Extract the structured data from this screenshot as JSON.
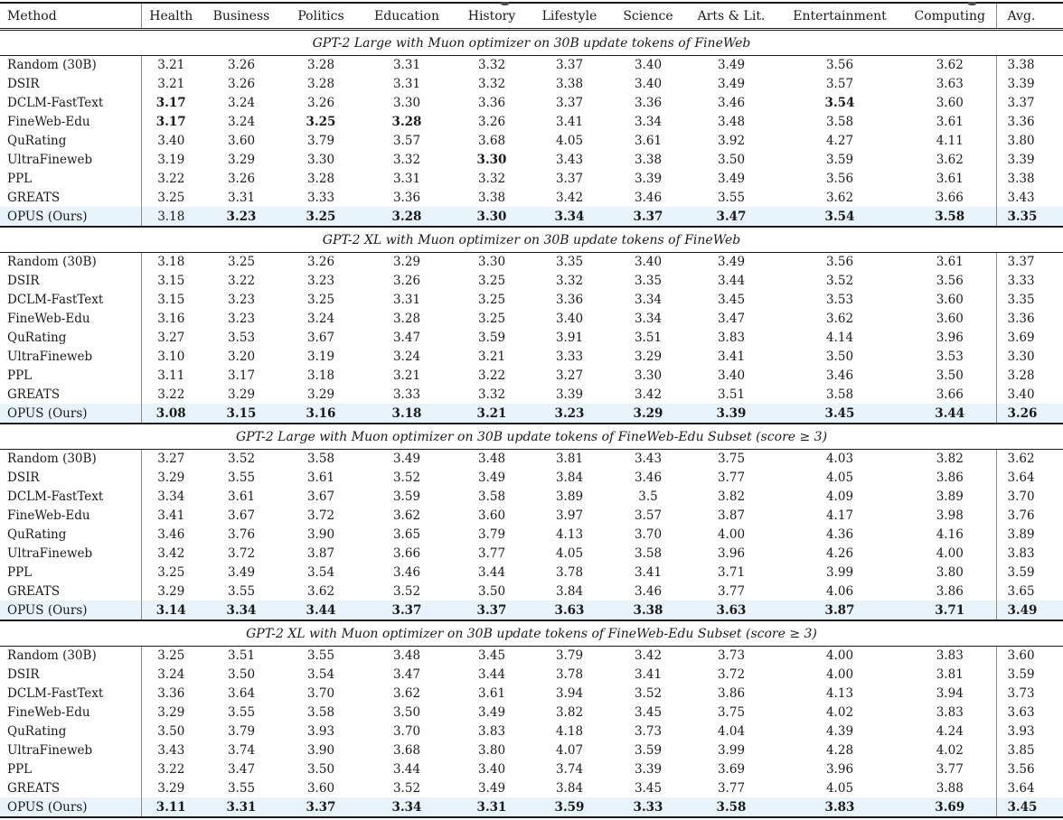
{
  "table": {
    "highlight_color": "#e8f3fb",
    "columns": [
      {
        "key": "method",
        "label": "Method"
      },
      {
        "key": "health",
        "label": "Health"
      },
      {
        "key": "business",
        "label": "Business"
      },
      {
        "key": "politics",
        "label": "Politics"
      },
      {
        "key": "education",
        "label": "Education"
      },
      {
        "key": "history",
        "label": "History"
      },
      {
        "key": "lifestyle",
        "label": "Lifestyle"
      },
      {
        "key": "science",
        "label": "Science"
      },
      {
        "key": "arts-lit",
        "label": "Arts & Lit."
      },
      {
        "key": "entertainment",
        "label": "Entertainment"
      },
      {
        "key": "computing",
        "label": "Computing"
      },
      {
        "key": "avg",
        "label": "Avg."
      }
    ],
    "sections": [
      {
        "title": "GPT-2 Large with Muon optimizer on 30B update tokens of FineWeb",
        "rows": [
          {
            "method": "Random (30B)",
            "values": [
              "3.21",
              "3.26",
              "3.28",
              "3.31",
              "3.32",
              "3.37",
              "3.40",
              "3.49",
              "3.56",
              "3.62",
              "3.38"
            ],
            "bold": [],
            "highlight": false
          },
          {
            "method": "DSIR",
            "values": [
              "3.21",
              "3.26",
              "3.28",
              "3.31",
              "3.32",
              "3.38",
              "3.40",
              "3.49",
              "3.57",
              "3.63",
              "3.39"
            ],
            "bold": [],
            "highlight": false
          },
          {
            "method": "DCLM-FastText",
            "values": [
              "3.17",
              "3.24",
              "3.26",
              "3.30",
              "3.36",
              "3.37",
              "3.36",
              "3.46",
              "3.54",
              "3.60",
              "3.37"
            ],
            "bold": [
              0,
              8
            ],
            "highlight": false
          },
          {
            "method": "FineWeb-Edu",
            "values": [
              "3.17",
              "3.24",
              "3.25",
              "3.28",
              "3.26",
              "3.41",
              "3.34",
              "3.48",
              "3.58",
              "3.61",
              "3.36"
            ],
            "bold": [
              0,
              2,
              3
            ],
            "highlight": false
          },
          {
            "method": "QuRating",
            "values": [
              "3.40",
              "3.60",
              "3.79",
              "3.57",
              "3.68",
              "4.05",
              "3.61",
              "3.92",
              "4.27",
              "4.11",
              "3.80"
            ],
            "bold": [],
            "highlight": false
          },
          {
            "method": "UltraFineweb",
            "values": [
              "3.19",
              "3.29",
              "3.30",
              "3.32",
              "3.30",
              "3.43",
              "3.38",
              "3.50",
              "3.59",
              "3.62",
              "3.39"
            ],
            "bold": [
              4
            ],
            "highlight": false
          },
          {
            "method": "PPL",
            "values": [
              "3.22",
              "3.26",
              "3.28",
              "3.31",
              "3.32",
              "3.37",
              "3.39",
              "3.49",
              "3.56",
              "3.61",
              "3.38"
            ],
            "bold": [],
            "highlight": false
          },
          {
            "method": "GREATS",
            "values": [
              "3.25",
              "3.31",
              "3.33",
              "3.36",
              "3.38",
              "3.42",
              "3.46",
              "3.55",
              "3.62",
              "3.66",
              "3.43"
            ],
            "bold": [],
            "highlight": false
          },
          {
            "method": "OPUS (Ours)",
            "values": [
              "3.18",
              "3.23",
              "3.25",
              "3.28",
              "3.30",
              "3.34",
              "3.37",
              "3.47",
              "3.54",
              "3.58",
              "3.35"
            ],
            "bold": [
              1,
              2,
              3,
              4,
              5,
              6,
              7,
              8,
              9,
              10
            ],
            "highlight": true
          }
        ]
      },
      {
        "title": "GPT-2 XL with Muon optimizer on 30B update tokens of FineWeb",
        "rows": [
          {
            "method": "Random (30B)",
            "values": [
              "3.18",
              "3.25",
              "3.26",
              "3.29",
              "3.30",
              "3.35",
              "3.40",
              "3.49",
              "3.56",
              "3.61",
              "3.37"
            ],
            "bold": [],
            "highlight": false
          },
          {
            "method": "DSIR",
            "values": [
              "3.15",
              "3.22",
              "3.23",
              "3.26",
              "3.25",
              "3.32",
              "3.35",
              "3.44",
              "3.52",
              "3.56",
              "3.33"
            ],
            "bold": [],
            "highlight": false
          },
          {
            "method": "DCLM-FastText",
            "values": [
              "3.15",
              "3.23",
              "3.25",
              "3.31",
              "3.25",
              "3.36",
              "3.34",
              "3.45",
              "3.53",
              "3.60",
              "3.35"
            ],
            "bold": [],
            "highlight": false
          },
          {
            "method": "FineWeb-Edu",
            "values": [
              "3.16",
              "3.23",
              "3.24",
              "3.28",
              "3.25",
              "3.40",
              "3.34",
              "3.47",
              "3.62",
              "3.60",
              "3.36"
            ],
            "bold": [],
            "highlight": false
          },
          {
            "method": "QuRating",
            "values": [
              "3.27",
              "3.53",
              "3.67",
              "3.47",
              "3.59",
              "3.91",
              "3.51",
              "3.83",
              "4.14",
              "3.96",
              "3.69"
            ],
            "bold": [],
            "highlight": false
          },
          {
            "method": "UltraFineweb",
            "values": [
              "3.10",
              "3.20",
              "3.19",
              "3.24",
              "3.21",
              "3.33",
              "3.29",
              "3.41",
              "3.50",
              "3.53",
              "3.30"
            ],
            "bold": [],
            "highlight": false
          },
          {
            "method": "PPL",
            "values": [
              "3.11",
              "3.17",
              "3.18",
              "3.21",
              "3.22",
              "3.27",
              "3.30",
              "3.40",
              "3.46",
              "3.50",
              "3.28"
            ],
            "bold": [],
            "highlight": false
          },
          {
            "method": "GREATS",
            "values": [
              "3.22",
              "3.29",
              "3.29",
              "3.33",
              "3.32",
              "3.39",
              "3.42",
              "3.51",
              "3.58",
              "3.66",
              "3.40"
            ],
            "bold": [],
            "highlight": false
          },
          {
            "method": "OPUS (Ours)",
            "values": [
              "3.08",
              "3.15",
              "3.16",
              "3.18",
              "3.21",
              "3.23",
              "3.29",
              "3.39",
              "3.45",
              "3.44",
              "3.26"
            ],
            "bold": [
              0,
              1,
              2,
              3,
              4,
              5,
              6,
              7,
              8,
              9,
              10
            ],
            "highlight": true
          }
        ]
      },
      {
        "title": "GPT-2 Large with Muon optimizer on 30B update tokens of FineWeb-Edu Subset (score ≥ 3)",
        "rows": [
          {
            "method": "Random (30B)",
            "values": [
              "3.27",
              "3.52",
              "3.58",
              "3.49",
              "3.48",
              "3.81",
              "3.43",
              "3.75",
              "4.03",
              "3.82",
              "3.62"
            ],
            "bold": [],
            "highlight": false
          },
          {
            "method": "DSIR",
            "values": [
              "3.29",
              "3.55",
              "3.61",
              "3.52",
              "3.49",
              "3.84",
              "3.46",
              "3.77",
              "4.05",
              "3.86",
              "3.64"
            ],
            "bold": [],
            "highlight": false
          },
          {
            "method": "DCLM-FastText",
            "values": [
              "3.34",
              "3.61",
              "3.67",
              "3.59",
              "3.58",
              "3.89",
              "3.5",
              "3.82",
              "4.09",
              "3.89",
              "3.70"
            ],
            "bold": [],
            "highlight": false
          },
          {
            "method": "FineWeb-Edu",
            "values": [
              "3.41",
              "3.67",
              "3.72",
              "3.62",
              "3.60",
              "3.97",
              "3.57",
              "3.87",
              "4.17",
              "3.98",
              "3.76"
            ],
            "bold": [],
            "highlight": false
          },
          {
            "method": "QuRating",
            "values": [
              "3.46",
              "3.76",
              "3.90",
              "3.65",
              "3.79",
              "4.13",
              "3.70",
              "4.00",
              "4.36",
              "4.16",
              "3.89"
            ],
            "bold": [],
            "highlight": false
          },
          {
            "method": "UltraFineweb",
            "values": [
              "3.42",
              "3.72",
              "3.87",
              "3.66",
              "3.77",
              "4.05",
              "3.58",
              "3.96",
              "4.26",
              "4.00",
              "3.83"
            ],
            "bold": [],
            "highlight": false
          },
          {
            "method": "PPL",
            "values": [
              "3.25",
              "3.49",
              "3.54",
              "3.46",
              "3.44",
              "3.78",
              "3.41",
              "3.71",
              "3.99",
              "3.80",
              "3.59"
            ],
            "bold": [],
            "highlight": false
          },
          {
            "method": "GREATS",
            "values": [
              "3.29",
              "3.55",
              "3.62",
              "3.52",
              "3.50",
              "3.84",
              "3.46",
              "3.77",
              "4.06",
              "3.86",
              "3.65"
            ],
            "bold": [],
            "highlight": false
          },
          {
            "method": "OPUS (Ours)",
            "values": [
              "3.14",
              "3.34",
              "3.44",
              "3.37",
              "3.37",
              "3.63",
              "3.38",
              "3.63",
              "3.87",
              "3.71",
              "3.49"
            ],
            "bold": [
              0,
              1,
              2,
              3,
              4,
              5,
              6,
              7,
              8,
              9,
              10
            ],
            "highlight": true
          }
        ]
      },
      {
        "title": "GPT-2 XL with Muon optimizer on 30B update tokens of FineWeb-Edu Subset (score ≥ 3)",
        "rows": [
          {
            "method": "Random (30B)",
            "values": [
              "3.25",
              "3.51",
              "3.55",
              "3.48",
              "3.45",
              "3.79",
              "3.42",
              "3.73",
              "4.00",
              "3.83",
              "3.60"
            ],
            "bold": [],
            "highlight": false
          },
          {
            "method": "DSIR",
            "values": [
              "3.24",
              "3.50",
              "3.54",
              "3.47",
              "3.44",
              "3.78",
              "3.41",
              "3.72",
              "4.00",
              "3.81",
              "3.59"
            ],
            "bold": [],
            "highlight": false
          },
          {
            "method": "DCLM-FastText",
            "values": [
              "3.36",
              "3.64",
              "3.70",
              "3.62",
              "3.61",
              "3.94",
              "3.52",
              "3.86",
              "4.13",
              "3.94",
              "3.73"
            ],
            "bold": [],
            "highlight": false
          },
          {
            "method": "FineWeb-Edu",
            "values": [
              "3.29",
              "3.55",
              "3.58",
              "3.50",
              "3.49",
              "3.82",
              "3.45",
              "3.75",
              "4.02",
              "3.83",
              "3.63"
            ],
            "bold": [],
            "highlight": false
          },
          {
            "method": "QuRating",
            "values": [
              "3.50",
              "3.79",
              "3.93",
              "3.70",
              "3.83",
              "4.18",
              "3.73",
              "4.04",
              "4.39",
              "4.24",
              "3.93"
            ],
            "bold": [],
            "highlight": false
          },
          {
            "method": "UltraFineweb",
            "values": [
              "3.43",
              "3.74",
              "3.90",
              "3.68",
              "3.80",
              "4.07",
              "3.59",
              "3.99",
              "4.28",
              "4.02",
              "3.85"
            ],
            "bold": [],
            "highlight": false
          },
          {
            "method": "PPL",
            "values": [
              "3.22",
              "3.47",
              "3.50",
              "3.44",
              "3.40",
              "3.74",
              "3.39",
              "3.69",
              "3.96",
              "3.77",
              "3.56"
            ],
            "bold": [],
            "highlight": false
          },
          {
            "method": "GREATS",
            "values": [
              "3.29",
              "3.55",
              "3.60",
              "3.52",
              "3.49",
              "3.84",
              "3.45",
              "3.77",
              "4.05",
              "3.88",
              "3.64"
            ],
            "bold": [],
            "highlight": false
          },
          {
            "method": "OPUS (Ours)",
            "values": [
              "3.11",
              "3.31",
              "3.37",
              "3.34",
              "3.31",
              "3.59",
              "3.33",
              "3.58",
              "3.83",
              "3.69",
              "3.45"
            ],
            "bold": [
              0,
              1,
              2,
              3,
              4,
              5,
              6,
              7,
              8,
              9,
              10
            ],
            "highlight": true
          }
        ]
      }
    ]
  }
}
